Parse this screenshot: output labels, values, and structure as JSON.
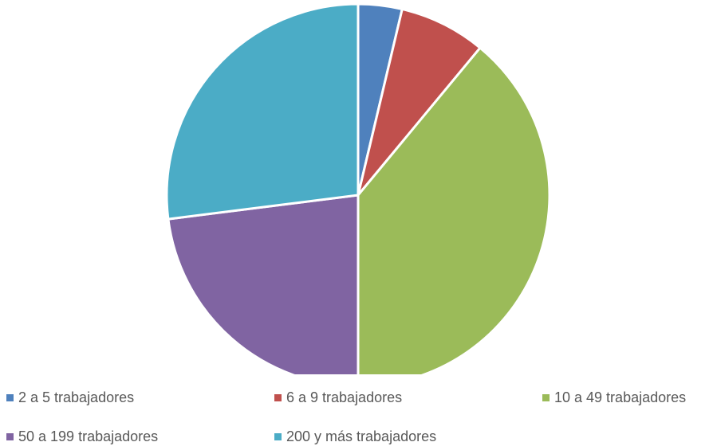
{
  "chart_data": {
    "type": "pie",
    "categories": [
      "2 a 5 trabajadores",
      "6 a 9 trabajadores",
      "10 a 49 trabajadores",
      "50 a 199 trabajadores",
      "200 y más trabajadores"
    ],
    "values": [
      3.7,
      7.3,
      39.0,
      23.0,
      27.0
    ],
    "colors": [
      "#4F81BD",
      "#C0504D",
      "#9BBB59",
      "#8064A2",
      "#4BACC6"
    ],
    "title": "",
    "legend_position": "bottom"
  }
}
